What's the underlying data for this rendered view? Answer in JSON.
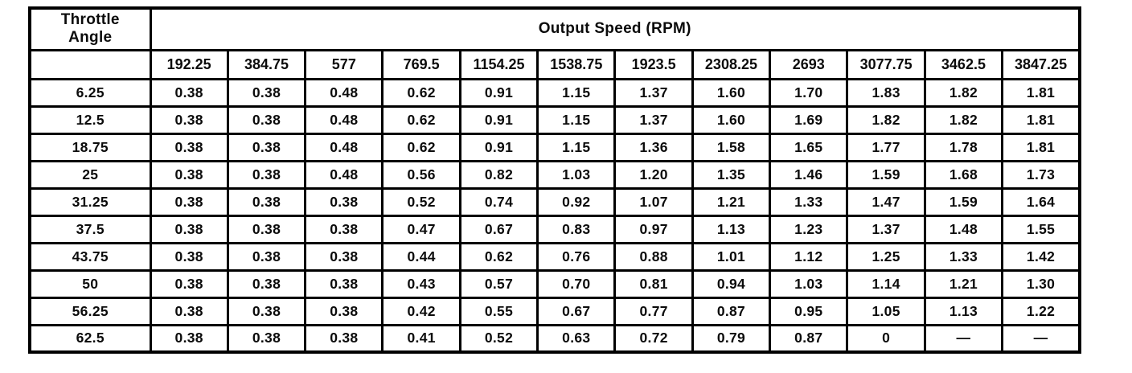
{
  "colors": {
    "ink": "#000000",
    "paper": "#ffffff"
  },
  "table": {
    "corner_header": "Throttle\nAngle",
    "corner_header_line1": "Throttle",
    "corner_header_line2": "Angle",
    "group_header": "Output Speed (RPM)",
    "speed_columns": [
      "192.25",
      "384.75",
      "577",
      "769.5",
      "1154.25",
      "1538.75",
      "1923.5",
      "2308.25",
      "2693",
      "3077.75",
      "3462.5",
      "3847.25"
    ],
    "rows": [
      {
        "throttle_angle": "6.25",
        "values": [
          "0.38",
          "0.38",
          "0.48",
          "0.62",
          "0.91",
          "1.15",
          "1.37",
          "1.60",
          "1.70",
          "1.83",
          "1.82",
          "1.81"
        ]
      },
      {
        "throttle_angle": "12.5",
        "values": [
          "0.38",
          "0.38",
          "0.48",
          "0.62",
          "0.91",
          "1.15",
          "1.37",
          "1.60",
          "1.69",
          "1.82",
          "1.82",
          "1.81"
        ]
      },
      {
        "throttle_angle": "18.75",
        "values": [
          "0.38",
          "0.38",
          "0.48",
          "0.62",
          "0.91",
          "1.15",
          "1.36",
          "1.58",
          "1.65",
          "1.77",
          "1.78",
          "1.81"
        ]
      },
      {
        "throttle_angle": "25",
        "values": [
          "0.38",
          "0.38",
          "0.48",
          "0.56",
          "0.82",
          "1.03",
          "1.20",
          "1.35",
          "1.46",
          "1.59",
          "1.68",
          "1.73"
        ]
      },
      {
        "throttle_angle": "31.25",
        "values": [
          "0.38",
          "0.38",
          "0.38",
          "0.52",
          "0.74",
          "0.92",
          "1.07",
          "1.21",
          "1.33",
          "1.47",
          "1.59",
          "1.64"
        ]
      },
      {
        "throttle_angle": "37.5",
        "values": [
          "0.38",
          "0.38",
          "0.38",
          "0.47",
          "0.67",
          "0.83",
          "0.97",
          "1.13",
          "1.23",
          "1.37",
          "1.48",
          "1.55"
        ]
      },
      {
        "throttle_angle": "43.75",
        "values": [
          "0.38",
          "0.38",
          "0.38",
          "0.44",
          "0.62",
          "0.76",
          "0.88",
          "1.01",
          "1.12",
          "1.25",
          "1.33",
          "1.42"
        ]
      },
      {
        "throttle_angle": "50",
        "values": [
          "0.38",
          "0.38",
          "0.38",
          "0.43",
          "0.57",
          "0.70",
          "0.81",
          "0.94",
          "1.03",
          "1.14",
          "1.21",
          "1.30"
        ]
      },
      {
        "throttle_angle": "56.25",
        "values": [
          "0.38",
          "0.38",
          "0.38",
          "0.42",
          "0.55",
          "0.67",
          "0.77",
          "0.87",
          "0.95",
          "1.05",
          "1.13",
          "1.22"
        ]
      },
      {
        "throttle_angle": "62.5",
        "values": [
          "0.38",
          "0.38",
          "0.38",
          "0.41",
          "0.52",
          "0.63",
          "0.72",
          "0.79",
          "0.87",
          "0",
          "—",
          "—"
        ]
      }
    ]
  },
  "chart_data": {
    "type": "table",
    "title": "Output Speed (RPM)",
    "row_label": "Throttle Angle",
    "columns": [
      192.25,
      384.75,
      577,
      769.5,
      1154.25,
      1538.75,
      1923.5,
      2308.25,
      2693,
      3077.75,
      3462.5,
      3847.25
    ],
    "row_categories": [
      6.25,
      12.5,
      18.75,
      25,
      31.25,
      37.5,
      43.75,
      50,
      56.25,
      62.5
    ],
    "series": [
      {
        "name": "6.25",
        "values": [
          0.38,
          0.38,
          0.48,
          0.62,
          0.91,
          1.15,
          1.37,
          1.6,
          1.7,
          1.83,
          1.82,
          1.81
        ]
      },
      {
        "name": "12.5",
        "values": [
          0.38,
          0.38,
          0.48,
          0.62,
          0.91,
          1.15,
          1.37,
          1.6,
          1.69,
          1.82,
          1.82,
          1.81
        ]
      },
      {
        "name": "18.75",
        "values": [
          0.38,
          0.38,
          0.48,
          0.62,
          0.91,
          1.15,
          1.36,
          1.58,
          1.65,
          1.77,
          1.78,
          1.81
        ]
      },
      {
        "name": "25",
        "values": [
          0.38,
          0.38,
          0.48,
          0.56,
          0.82,
          1.03,
          1.2,
          1.35,
          1.46,
          1.59,
          1.68,
          1.73
        ]
      },
      {
        "name": "31.25",
        "values": [
          0.38,
          0.38,
          0.38,
          0.52,
          0.74,
          0.92,
          1.07,
          1.21,
          1.33,
          1.47,
          1.59,
          1.64
        ]
      },
      {
        "name": "37.5",
        "values": [
          0.38,
          0.38,
          0.38,
          0.47,
          0.67,
          0.83,
          0.97,
          1.13,
          1.23,
          1.37,
          1.48,
          1.55
        ]
      },
      {
        "name": "43.75",
        "values": [
          0.38,
          0.38,
          0.38,
          0.44,
          0.62,
          0.76,
          0.88,
          1.01,
          1.12,
          1.25,
          1.33,
          1.42
        ]
      },
      {
        "name": "50",
        "values": [
          0.38,
          0.38,
          0.38,
          0.43,
          0.57,
          0.7,
          0.81,
          0.94,
          1.03,
          1.14,
          1.21,
          1.3
        ]
      },
      {
        "name": "56.25",
        "values": [
          0.38,
          0.38,
          0.38,
          0.42,
          0.55,
          0.67,
          0.77,
          0.87,
          0.95,
          1.05,
          1.13,
          1.22
        ]
      },
      {
        "name": "62.5",
        "values": [
          0.38,
          0.38,
          0.38,
          0.41,
          0.52,
          0.63,
          0.72,
          0.79,
          0.87,
          0,
          null,
          null
        ]
      }
    ]
  }
}
